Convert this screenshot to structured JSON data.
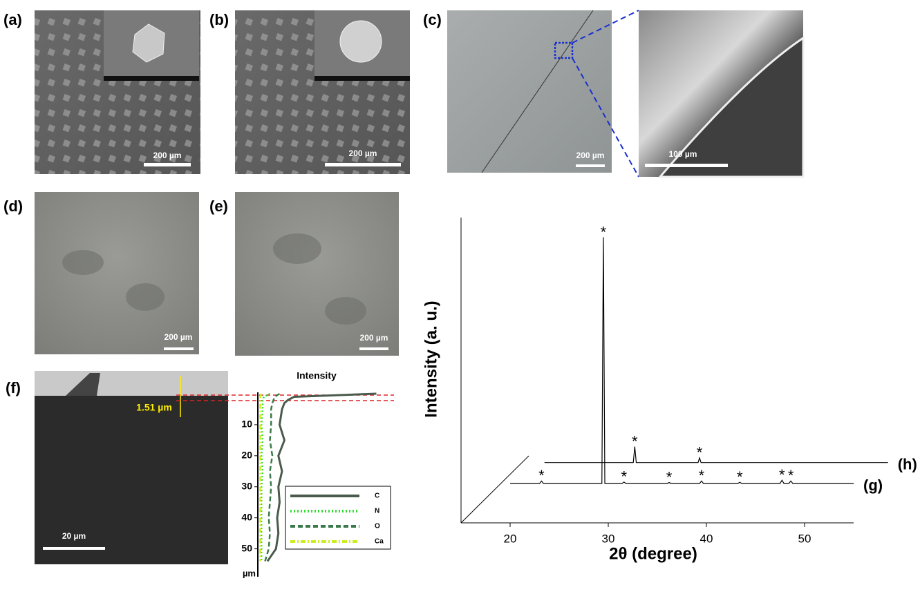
{
  "panels": [
    {
      "label": "(a)",
      "scale_bar": "200 µm"
    },
    {
      "label": "(b)",
      "scale_bar": "200 µm"
    },
    {
      "label": "(c)",
      "scale_bar": "200 µm",
      "zoom_scale_bar": "100 µm"
    },
    {
      "label": "(d)",
      "scale_bar": "200 µm"
    },
    {
      "label": "(e)",
      "scale_bar": "200 µm"
    },
    {
      "label": "(f)",
      "scale_bar": "20 µm",
      "thickness": "1.51 µm"
    }
  ],
  "chart_data": [
    {
      "type": "depth-profile",
      "title": "Intensity",
      "y_label": "µm",
      "ylim": [
        0,
        59
      ],
      "yticks": [
        10,
        20,
        30,
        40,
        50
      ],
      "xlim": [
        0,
        100
      ],
      "depth": [
        0,
        1,
        2,
        3,
        5,
        10,
        15,
        20,
        25,
        30,
        35,
        40,
        45,
        50,
        54
      ],
      "series": [
        {
          "name": "C",
          "color": "#4a5a4c",
          "dash": "",
          "values": [
            98,
            30,
            25,
            22,
            20,
            18,
            22,
            17,
            20,
            17,
            18,
            16,
            17,
            15,
            8
          ]
        },
        {
          "name": "N",
          "color": "#33dd33",
          "dash": "2 3",
          "values": [
            10,
            5,
            4,
            4,
            4,
            3,
            4,
            3,
            4,
            3,
            3,
            3,
            3,
            3,
            3
          ]
        },
        {
          "name": "O",
          "color": "#3a7a4a",
          "dash": "7 4",
          "values": [
            18,
            14,
            13,
            12,
            11,
            11,
            10,
            12,
            10,
            11,
            10,
            9,
            10,
            9,
            6
          ]
        },
        {
          "name": "Ca",
          "color": "#ccee22",
          "dash": "7 3 2 3",
          "values": [
            3,
            2,
            2,
            2,
            2,
            2,
            2,
            2,
            2,
            2,
            2,
            2,
            2,
            2,
            2
          ]
        }
      ]
    },
    {
      "type": "line",
      "x_label": "2θ (degree)",
      "y_label": "Intensity (a. u.)",
      "xlim": [
        15,
        55
      ],
      "xticks": [
        20,
        30,
        40,
        50
      ],
      "ylim": [
        -16,
        108
      ],
      "marker_text": "*",
      "series": [
        {
          "name": "(h)",
          "color": "#000000",
          "x": [
            23.5,
            32.55,
            32.7,
            32.85,
            39.15,
            39.3,
            39.45,
            58.5
          ],
          "values": [
            8.5,
            8.5,
            15,
            8.5,
            8.5,
            10.4,
            8.5,
            8.5
          ],
          "markers": [
            32.7,
            39.3
          ]
        },
        {
          "name": "(g)",
          "color": "#000000",
          "x": [
            20,
            23.0,
            23.2,
            23.4,
            29.35,
            29.5,
            29.65,
            31.4,
            31.6,
            31.8,
            36.0,
            36.2,
            36.4,
            39.3,
            39.5,
            39.7,
            43.2,
            43.4,
            43.6,
            47.5,
            47.7,
            47.9,
            48.4,
            48.6,
            48.8,
            55
          ],
          "values": [
            0,
            0,
            1,
            0,
            0,
            100,
            0,
            0,
            0.6,
            0,
            0,
            0.4,
            0,
            0,
            1,
            0,
            0,
            0.5,
            0,
            0,
            1.3,
            0,
            0,
            1,
            0,
            0
          ],
          "markers": [
            23.2,
            29.5,
            31.6,
            36.2,
            39.5,
            43.4,
            47.7,
            48.6
          ]
        }
      ]
    }
  ]
}
